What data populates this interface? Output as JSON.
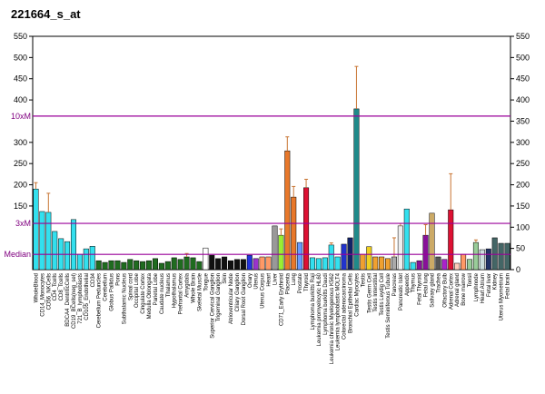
{
  "chart_data": {
    "type": "bar",
    "title": "221664_s_at",
    "ylim": [
      0,
      550
    ],
    "yticks": [
      0,
      50,
      100,
      150,
      200,
      250,
      300,
      350,
      400,
      450,
      500,
      550
    ],
    "yticks_left": [
      150,
      200,
      250,
      300,
      400,
      450,
      500,
      550
    ],
    "reference_lines": [
      {
        "label": "10xM",
        "value": 362
      },
      {
        "label": "3xM",
        "value": 109
      },
      {
        "label": "Median",
        "value": 36
      }
    ],
    "reference_color": "#9a009a",
    "error_color": "#c87533",
    "categories": [
      "WholeBlood",
      "CD14_Monocytes",
      "CD56_NKCells",
      "CD4_Tcells",
      "CD8_Tcells",
      "BDCA4_DentriticCells",
      "CD19_BCells(neg_sel)",
      "721_B_lymphoblasts",
      "CD105_Endothelial",
      "CD34",
      "Cerebellum Peduncles",
      "Cerebellum",
      "Globus Pallidus",
      "Pons",
      "Subthalamic Nucleus",
      "Spinal cord",
      "Occipital Lobe",
      "Cingulate Cortex",
      "Medulla Oblongata",
      "Parietal Lobe",
      "Caudate nucleus",
      "Thalamus",
      "Hypothalamus",
      "Prefrontal Cortex",
      "Amygdala",
      "Whole Brain",
      "Skeletal Muscle",
      "Tongue",
      "Superior Cervical Ganglion",
      "Trigeminal Ganglion",
      "Skin",
      "Atrioventricular Node",
      "Ciliary Ganglion",
      "Dorsal Root Ganglion",
      "Ovary",
      "Uterus",
      "Uterus Corpus",
      "Heart",
      "Liver",
      "CD71_Early Erythroid",
      "Placenta",
      "Lung",
      "Prostate",
      "Thyroid",
      "Lymphoma burkitts Raji",
      "Leukemia promyelocytic HL60",
      "Lymphoma burkitts Daudi",
      "Leukemia chronic Myelogenous K562",
      "Leukemia lymphoblastic MOLT4",
      "Colorectal adenocarcinoma",
      "Bronchial Epithelial Cells",
      "Cardiac Myocytes",
      "Testis",
      "Testis Germ Cell",
      "Testis Interstitial",
      "Testis Leydig Cell",
      "Testis Seminiferous Tubule",
      "Pancreas",
      "Pancreatic Islet",
      "Appendix",
      "Thymus",
      "Fetal Thyroid",
      "Fetal lung",
      "Salivary gland",
      "Trachea",
      "Olfactory Bulb",
      "Adrenal Cortex",
      "Adrenal gland",
      "Bone marrow",
      "Tonsil",
      "Lymphnode",
      "Heart Atrium",
      "Fetal liver",
      "Kidney",
      "Uterus Myometrium",
      "Fetal brain"
    ],
    "values": [
      190,
      137,
      135,
      90,
      73,
      66,
      118,
      36,
      49,
      55,
      21,
      17,
      21,
      21,
      17,
      24,
      21,
      19,
      21,
      26,
      15,
      19,
      28,
      24,
      30,
      28,
      19,
      51,
      34,
      26,
      30,
      21,
      24,
      24,
      34,
      26,
      30,
      30,
      103,
      81,
      280,
      171,
      64,
      193,
      28,
      26,
      28,
      58,
      30,
      60,
      75,
      379,
      36,
      54,
      30,
      30,
      26,
      30,
      103,
      143,
      17,
      21,
      81,
      133,
      30,
      24,
      141,
      15,
      36,
      24,
      64,
      47,
      49,
      75,
      62,
      62
    ],
    "errors": [
      15,
      null,
      45,
      null,
      null,
      null,
      null,
      null,
      null,
      null,
      null,
      null,
      null,
      null,
      null,
      null,
      null,
      null,
      null,
      null,
      null,
      null,
      null,
      null,
      8,
      null,
      null,
      null,
      null,
      null,
      null,
      null,
      null,
      null,
      null,
      null,
      null,
      null,
      null,
      15,
      33,
      25,
      null,
      20,
      null,
      null,
      null,
      5,
      null,
      null,
      null,
      100,
      null,
      null,
      null,
      null,
      null,
      45,
      6,
      null,
      null,
      null,
      25,
      null,
      null,
      null,
      85,
      null,
      null,
      null,
      6,
      null,
      null,
      null,
      null,
      null
    ],
    "colors": [
      "#33e0ee",
      "#33e0ee",
      "#33e0ee",
      "#33e0ee",
      "#33e0ee",
      "#33e0ee",
      "#33e0ee",
      "#33e0ee",
      "#33e0ee",
      "#33e0ee",
      "#1f6b1f",
      "#1f6b1f",
      "#1f6b1f",
      "#1f6b1f",
      "#1f6b1f",
      "#1f6b1f",
      "#1f6b1f",
      "#1f6b1f",
      "#1f6b1f",
      "#1f6b1f",
      "#1f6b1f",
      "#1f6b1f",
      "#1f6b1f",
      "#1f6b1f",
      "#1f6b1f",
      "#1f6b1f",
      "#1f6b1f",
      "#ffffff",
      "#111111",
      "#111111",
      "#111111",
      "#111111",
      "#111111",
      "#111111",
      "#2233dd",
      "#9933cc",
      "#ff9966",
      "#ff9966",
      "#999999",
      "#99ee33",
      "#e8782a",
      "#e8782a",
      "#6699ff",
      "#dd1133",
      "#33e0ee",
      "#33e0ee",
      "#33e0ee",
      "#33e0ee",
      "#33e0ee",
      "#2233cc",
      "#112266",
      "#1f8a8a",
      "#f0a030",
      "#f0d020",
      "#f0a030",
      "#f0a030",
      "#f0a030",
      "#aaaaaa",
      "#eeeeee",
      "#33e0ee",
      "#33e0ee",
      "#881199",
      "#881199",
      "#ccaa66",
      "#555555",
      "#aa22cc",
      "#dd1133",
      "#ffccbb",
      "#ff9966",
      "#99cc99",
      "#99cc99",
      "#ccdddd",
      "#223366",
      "#446666",
      "#446666",
      "#446666"
    ]
  }
}
